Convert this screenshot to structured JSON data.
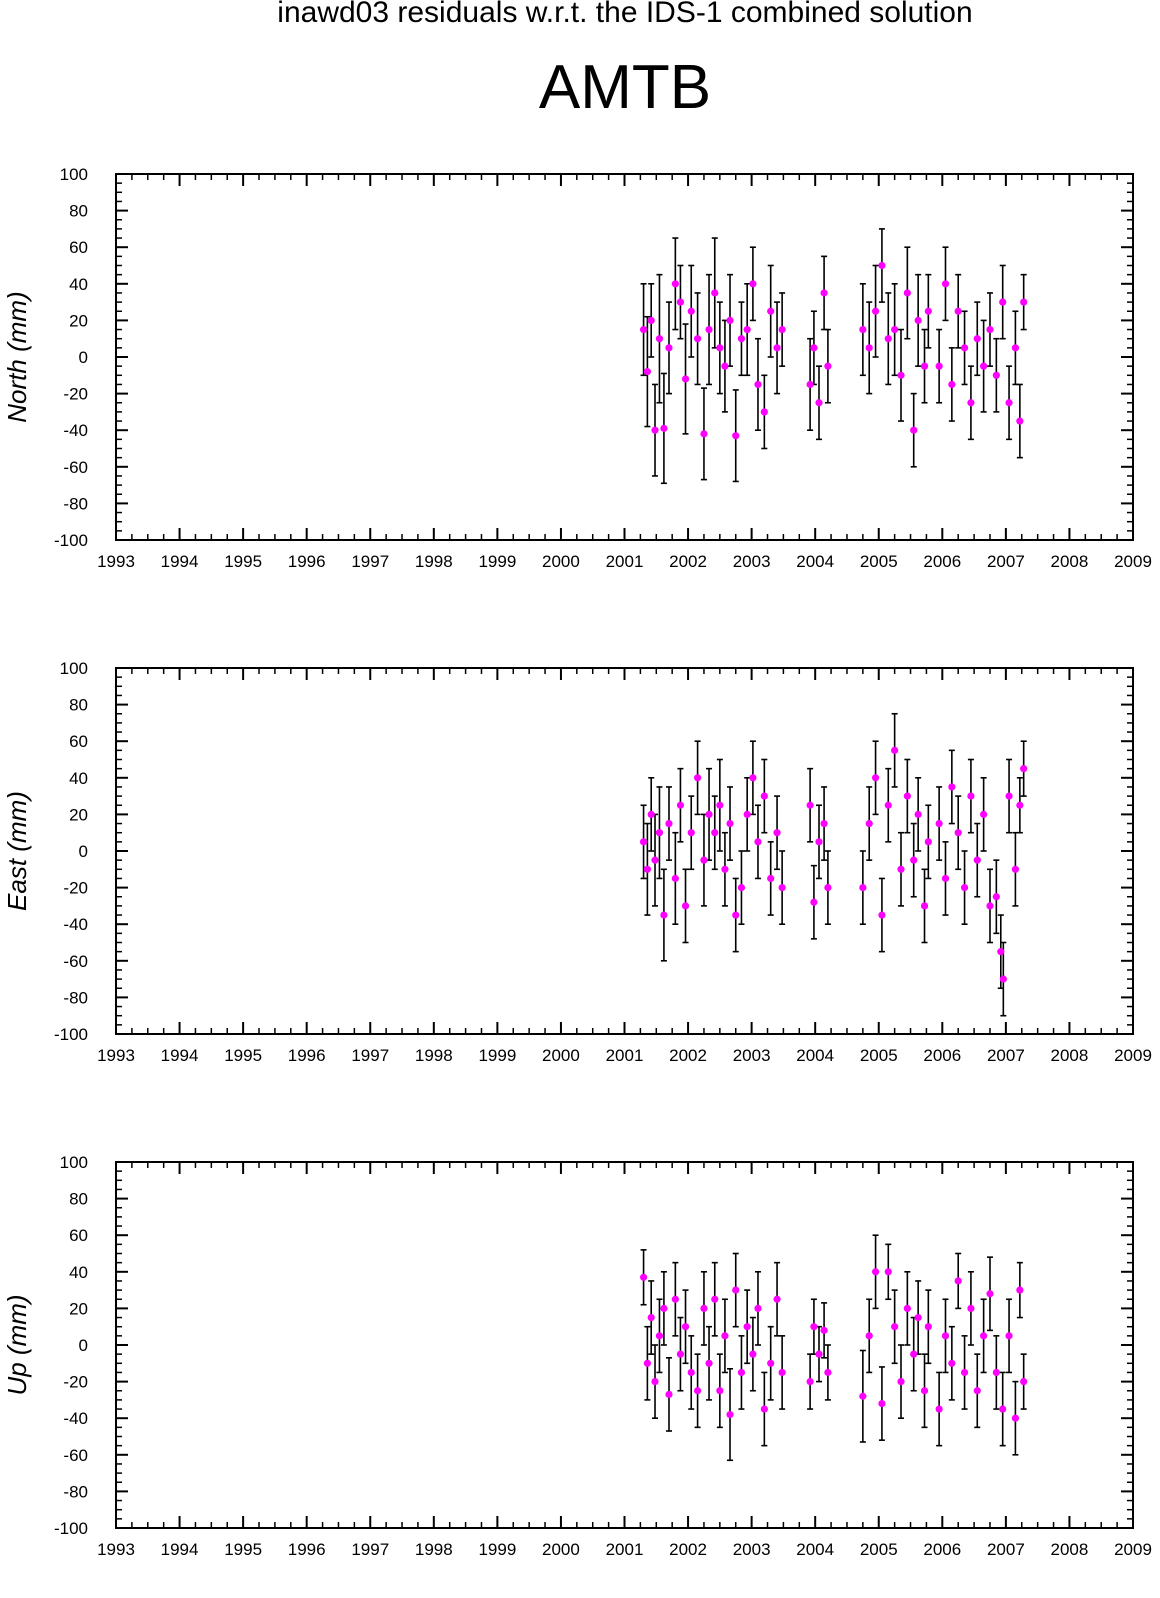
{
  "header": {
    "suptitle": "inawd03 residuals w.r.t. the IDS-1 combined solution",
    "station": "AMTB"
  },
  "colors": {
    "marker": "#ff00ff",
    "errorbar": "#000000",
    "axes": "#000000"
  },
  "chart_data": [
    {
      "type": "scatter",
      "ylabel": "North (mm)",
      "xlim": [
        1993,
        2009
      ],
      "ylim": [
        -100,
        100
      ],
      "xticks": [
        "1993",
        "1994",
        "1995",
        "1996",
        "1997",
        "1998",
        "1999",
        "2000",
        "2001",
        "2002",
        "2003",
        "2004",
        "2005",
        "2006",
        "2007",
        "2008",
        "2009"
      ],
      "yticks": [
        "100",
        "80",
        "60",
        "40",
        "20",
        "0",
        "-20",
        "-40",
        "-60",
        "-80",
        "-100"
      ],
      "series": [
        {
          "x": [
            2001.3,
            2001.36,
            2001.42,
            2001.48,
            2001.55,
            2001.62,
            2001.7,
            2001.8,
            2001.88,
            2001.96,
            2002.05,
            2002.15,
            2002.25,
            2002.33,
            2002.42,
            2002.5,
            2002.58,
            2002.66,
            2002.75,
            2002.84,
            2002.93,
            2003.02,
            2003.1,
            2003.2,
            2003.3,
            2003.4,
            2003.48,
            2003.92,
            2003.98,
            2004.06,
            2004.14,
            2004.2,
            2004.75,
            2004.85,
            2004.95,
            2005.05,
            2005.15,
            2005.25,
            2005.35,
            2005.45,
            2005.55,
            2005.62,
            2005.72,
            2005.78,
            2005.95,
            2006.05,
            2006.15,
            2006.25,
            2006.35,
            2006.45,
            2006.55,
            2006.65,
            2006.75,
            2006.85,
            2006.95,
            2007.05,
            2007.15,
            2007.22,
            2007.28
          ],
          "y": [
            15,
            -8,
            20,
            -40,
            10,
            -39,
            5,
            40,
            30,
            -12,
            25,
            10,
            -42,
            15,
            35,
            5,
            -5,
            20,
            -43,
            10,
            15,
            40,
            -15,
            -30,
            25,
            5,
            15,
            -15,
            5,
            -25,
            35,
            -5,
            15,
            5,
            25,
            50,
            10,
            15,
            -10,
            35,
            -40,
            20,
            -5,
            25,
            -5,
            40,
            -15,
            25,
            5,
            -25,
            10,
            -5,
            15,
            -10,
            30,
            -25,
            5,
            -35,
            30
          ],
          "err": [
            25,
            30,
            20,
            25,
            35,
            30,
            25,
            25,
            20,
            30,
            25,
            25,
            25,
            30,
            30,
            25,
            25,
            25,
            25,
            20,
            25,
            20,
            25,
            20,
            25,
            25,
            20,
            25,
            20,
            20,
            20,
            20,
            25,
            25,
            25,
            20,
            25,
            25,
            25,
            25,
            20,
            25,
            20,
            20,
            20,
            20,
            20,
            20,
            20,
            20,
            20,
            25,
            20,
            20,
            20,
            20,
            20,
            20,
            15
          ]
        }
      ]
    },
    {
      "type": "scatter",
      "ylabel": "East (mm)",
      "xlim": [
        1993,
        2009
      ],
      "ylim": [
        -100,
        100
      ],
      "xticks": [
        "1993",
        "1994",
        "1995",
        "1996",
        "1997",
        "1998",
        "1999",
        "2000",
        "2001",
        "2002",
        "2003",
        "2004",
        "2005",
        "2006",
        "2007",
        "2008",
        "2009"
      ],
      "yticks": [
        "100",
        "80",
        "60",
        "40",
        "20",
        "0",
        "-20",
        "-40",
        "-60",
        "-80",
        "-100"
      ],
      "series": [
        {
          "x": [
            2001.3,
            2001.36,
            2001.42,
            2001.48,
            2001.55,
            2001.62,
            2001.7,
            2001.8,
            2001.88,
            2001.96,
            2002.05,
            2002.15,
            2002.25,
            2002.33,
            2002.42,
            2002.5,
            2002.58,
            2002.66,
            2002.75,
            2002.84,
            2002.93,
            2003.02,
            2003.1,
            2003.2,
            2003.3,
            2003.4,
            2003.48,
            2003.92,
            2003.98,
            2004.06,
            2004.14,
            2004.2,
            2004.75,
            2004.85,
            2004.95,
            2005.05,
            2005.15,
            2005.25,
            2005.35,
            2005.45,
            2005.55,
            2005.62,
            2005.72,
            2005.78,
            2005.95,
            2006.05,
            2006.15,
            2006.25,
            2006.35,
            2006.45,
            2006.55,
            2006.65,
            2006.75,
            2006.85,
            2006.92,
            2006.96,
            2007.05,
            2007.15,
            2007.22,
            2007.28
          ],
          "y": [
            5,
            -10,
            20,
            -5,
            10,
            -35,
            15,
            -15,
            25,
            -30,
            10,
            40,
            -5,
            20,
            10,
            25,
            -10,
            15,
            -35,
            -20,
            20,
            40,
            5,
            30,
            -15,
            10,
            -20,
            25,
            -28,
            5,
            15,
            -20,
            -20,
            15,
            40,
            -35,
            25,
            55,
            -10,
            30,
            -5,
            20,
            -30,
            5,
            15,
            -15,
            35,
            10,
            -20,
            30,
            -5,
            20,
            -30,
            -25,
            -55,
            -70,
            30,
            -10,
            25,
            45
          ],
          "err": [
            20,
            25,
            20,
            25,
            25,
            25,
            20,
            25,
            20,
            20,
            20,
            20,
            25,
            25,
            20,
            25,
            20,
            20,
            20,
            20,
            20,
            20,
            20,
            20,
            20,
            20,
            20,
            20,
            20,
            20,
            20,
            20,
            20,
            20,
            20,
            20,
            20,
            20,
            20,
            20,
            20,
            20,
            20,
            20,
            20,
            20,
            20,
            20,
            20,
            20,
            20,
            20,
            20,
            20,
            20,
            20,
            20,
            20,
            15,
            15
          ]
        }
      ]
    },
    {
      "type": "scatter",
      "ylabel": "Up (mm)",
      "xlim": [
        1993,
        2009
      ],
      "ylim": [
        -100,
        100
      ],
      "xticks": [
        "1993",
        "1994",
        "1995",
        "1996",
        "1997",
        "1998",
        "1999",
        "2000",
        "2001",
        "2002",
        "2003",
        "2004",
        "2005",
        "2006",
        "2007",
        "2008",
        "2009"
      ],
      "yticks": [
        "100",
        "80",
        "60",
        "40",
        "20",
        "0",
        "-20",
        "-40",
        "-60",
        "-80",
        "-100"
      ],
      "series": [
        {
          "x": [
            2001.3,
            2001.36,
            2001.42,
            2001.48,
            2001.55,
            2001.62,
            2001.7,
            2001.8,
            2001.88,
            2001.96,
            2002.05,
            2002.15,
            2002.25,
            2002.33,
            2002.42,
            2002.5,
            2002.58,
            2002.66,
            2002.75,
            2002.84,
            2002.93,
            2003.02,
            2003.1,
            2003.2,
            2003.3,
            2003.4,
            2003.48,
            2003.92,
            2003.98,
            2004.06,
            2004.14,
            2004.2,
            2004.75,
            2004.85,
            2004.95,
            2005.05,
            2005.15,
            2005.25,
            2005.35,
            2005.45,
            2005.55,
            2005.62,
            2005.72,
            2005.78,
            2005.95,
            2006.05,
            2006.15,
            2006.25,
            2006.35,
            2006.45,
            2006.55,
            2006.65,
            2006.75,
            2006.85,
            2006.95,
            2007.05,
            2007.15,
            2007.22,
            2007.28
          ],
          "y": [
            37,
            -10,
            15,
            -20,
            5,
            20,
            -27,
            25,
            -5,
            10,
            -15,
            -25,
            20,
            -10,
            25,
            -25,
            5,
            -38,
            30,
            -15,
            10,
            -5,
            20,
            -35,
            -10,
            25,
            -15,
            -20,
            10,
            -5,
            8,
            -15,
            -28,
            5,
            40,
            -32,
            40,
            10,
            -20,
            20,
            -5,
            15,
            -25,
            10,
            -35,
            5,
            -10,
            35,
            -15,
            20,
            -25,
            5,
            28,
            -15,
            -35,
            5,
            -40,
            30,
            -20
          ],
          "err": [
            15,
            20,
            20,
            20,
            20,
            20,
            20,
            20,
            20,
            20,
            20,
            20,
            20,
            20,
            20,
            20,
            20,
            25,
            20,
            20,
            20,
            20,
            20,
            20,
            20,
            20,
            20,
            15,
            15,
            15,
            15,
            15,
            25,
            20,
            20,
            20,
            15,
            20,
            20,
            20,
            20,
            20,
            20,
            20,
            20,
            20,
            20,
            15,
            20,
            20,
            20,
            20,
            20,
            20,
            20,
            20,
            20,
            15,
            15
          ]
        }
      ]
    }
  ]
}
